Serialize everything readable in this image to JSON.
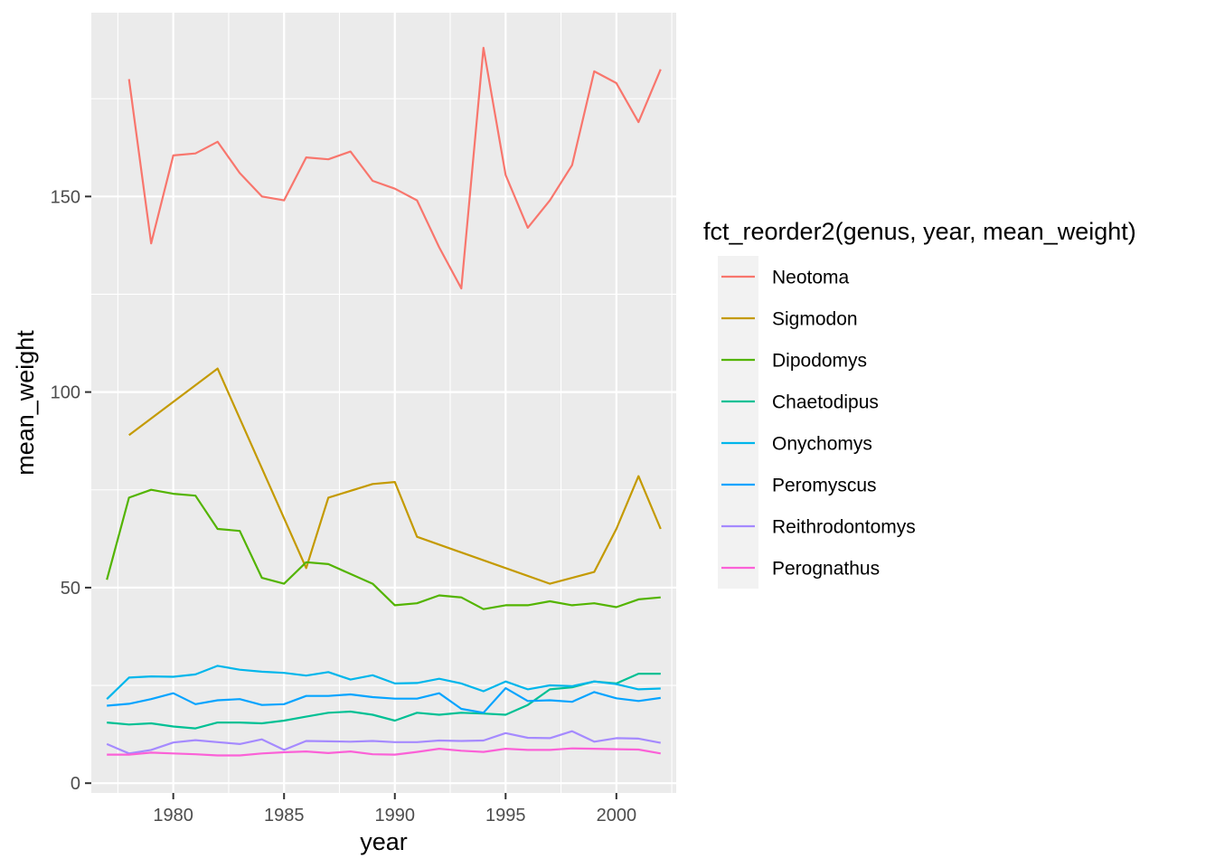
{
  "chart_data": {
    "type": "line",
    "title": "",
    "xlabel": "year",
    "ylabel": "mean_weight",
    "xlim": [
      1976.3,
      2002.7
    ],
    "ylim": [
      -2.5,
      197
    ],
    "x_ticks": [
      1980,
      1985,
      1990,
      1995,
      2000
    ],
    "y_ticks": [
      0,
      50,
      100,
      150
    ],
    "grid": true,
    "legend": {
      "title": "fct_reorder2(genus, year, mean_weight)",
      "placement": "right"
    },
    "series": [
      {
        "name": "Neotoma",
        "color": "#F8766D",
        "x": [
          1978,
          1979,
          1980,
          1981,
          1982,
          1983,
          1984,
          1985,
          1986,
          1987,
          1988,
          1989,
          1990,
          1991,
          1992,
          1993,
          1994,
          1995,
          1996,
          1997,
          1998,
          1999,
          2000,
          2001,
          2002
        ],
        "y": [
          180,
          138,
          160.5,
          161,
          164,
          156,
          150,
          149,
          160,
          159.5,
          161.5,
          154,
          152,
          149,
          137,
          126.5,
          188,
          155.5,
          142,
          149,
          158,
          182,
          179,
          169,
          182.5
        ]
      },
      {
        "name": "Sigmodon",
        "color": "#C49A00",
        "x": [
          1978,
          1982,
          1986,
          1987,
          1989,
          1990,
          1991,
          1997,
          1999,
          2000,
          2001,
          2002
        ],
        "y": [
          89,
          106,
          55,
          73,
          76.5,
          77,
          63,
          51,
          54,
          65,
          78.5,
          65
        ]
      },
      {
        "name": "Dipodomys",
        "color": "#53B400",
        "x": [
          1977,
          1978,
          1979,
          1980,
          1981,
          1982,
          1983,
          1984,
          1985,
          1986,
          1987,
          1988,
          1989,
          1990,
          1991,
          1992,
          1993,
          1994,
          1995,
          1996,
          1997,
          1998,
          1999,
          2000,
          2001,
          2002
        ],
        "y": [
          52,
          73,
          75,
          74,
          73.5,
          65,
          64.5,
          52.5,
          51,
          56.5,
          56,
          53.5,
          51,
          45.5,
          46,
          48,
          47.5,
          44.5,
          45.5,
          45.5,
          46.5,
          45.5,
          46,
          45,
          47,
          47.5
        ]
      },
      {
        "name": "Chaetodipus",
        "color": "#00C094",
        "x": [
          1977,
          1978,
          1979,
          1980,
          1981,
          1982,
          1983,
          1984,
          1985,
          1986,
          1987,
          1988,
          1989,
          1990,
          1991,
          1992,
          1993,
          1994,
          1995,
          1996,
          1997,
          1998,
          1999,
          2000,
          2001,
          2002
        ],
        "y": [
          15.5,
          15,
          15.3,
          14.5,
          14,
          15.5,
          15.5,
          15.3,
          16,
          17,
          18,
          18.3,
          17.5,
          16,
          18,
          17.5,
          18,
          17.8,
          17.5,
          20,
          24,
          24.5,
          26,
          25.5,
          28,
          28
        ]
      },
      {
        "name": "Onychomys",
        "color": "#00B6EB",
        "x": [
          1977,
          1978,
          1979,
          1980,
          1981,
          1982,
          1983,
          1984,
          1985,
          1986,
          1987,
          1988,
          1989,
          1990,
          1991,
          1992,
          1993,
          1994,
          1995,
          1996,
          1997,
          1998,
          1999,
          2000,
          2001,
          2002
        ],
        "y": [
          21.5,
          27,
          27.3,
          27.2,
          27.8,
          30,
          29,
          28.5,
          28.2,
          27.5,
          28.4,
          26.5,
          27.6,
          25.5,
          25.6,
          26.7,
          25.5,
          23.5,
          26,
          24,
          25,
          24.8,
          26,
          25.3,
          24,
          24.2
        ]
      },
      {
        "name": "Peromyscus",
        "color": "#06A4FF",
        "x": [
          1977,
          1978,
          1979,
          1980,
          1981,
          1982,
          1983,
          1984,
          1985,
          1986,
          1987,
          1988,
          1989,
          1990,
          1991,
          1992,
          1993,
          1994,
          1995,
          1996,
          1997,
          1998,
          1999,
          2000,
          2001,
          2002
        ],
        "y": [
          19.8,
          20.3,
          21.5,
          23,
          20.2,
          21.2,
          21.5,
          20,
          20.2,
          22.3,
          22.3,
          22.7,
          22,
          21.6,
          21.6,
          23,
          19,
          18,
          24.3,
          21,
          21.2,
          20.8,
          23.3,
          21.7,
          21,
          21.8
        ]
      },
      {
        "name": "Reithrodontomys",
        "color": "#A58AFF",
        "x": [
          1977,
          1978,
          1979,
          1980,
          1981,
          1982,
          1983,
          1984,
          1985,
          1986,
          1987,
          1988,
          1989,
          1990,
          1991,
          1992,
          1993,
          1994,
          1995,
          1996,
          1997,
          1998,
          1999,
          2000,
          2001,
          2002
        ],
        "y": [
          10,
          7.6,
          8.5,
          10.4,
          11,
          10.5,
          10,
          11.2,
          8.5,
          10.8,
          10.7,
          10.6,
          10.8,
          10.5,
          10.5,
          10.9,
          10.8,
          10.9,
          12.8,
          11.6,
          11.5,
          13.3,
          10.6,
          11.5,
          11.4,
          10.3
        ]
      },
      {
        "name": "Perognathus",
        "color": "#FB61D7",
        "x": [
          1977,
          1978,
          1979,
          1980,
          1981,
          1982,
          1983,
          1984,
          1985,
          1986,
          1987,
          1988,
          1989,
          1990,
          1991,
          1992,
          1993,
          1994,
          1995,
          1996,
          1997,
          1998,
          1999,
          2000,
          2001,
          2002
        ],
        "y": [
          7.3,
          7.3,
          7.8,
          7.6,
          7.4,
          7.1,
          7.1,
          7.6,
          7.9,
          8.1,
          7.7,
          8.1,
          7.4,
          7.3,
          8,
          8.8,
          8.3,
          8,
          8.8,
          8.5,
          8.5,
          8.9,
          8.8,
          8.7,
          8.6,
          7.6
        ]
      }
    ]
  }
}
